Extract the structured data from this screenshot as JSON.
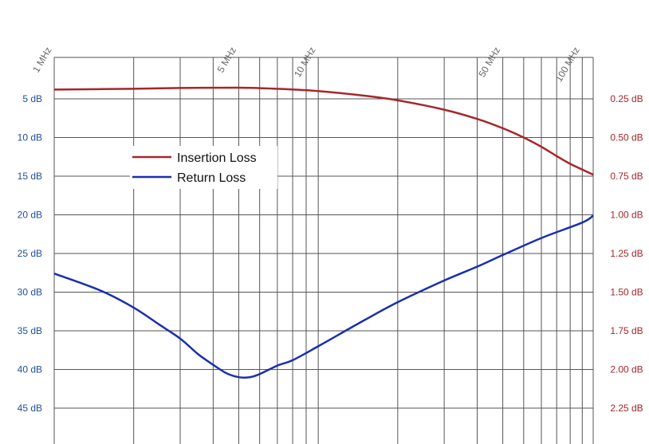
{
  "chart_data": {
    "type": "line",
    "x_scale": "log",
    "x_range_mhz": [
      1,
      110
    ],
    "left_axis": {
      "color": "#1f4f9a",
      "ticks": [
        {
          "value": 5,
          "label": "5 dB"
        },
        {
          "value": 10,
          "label": "10 dB"
        },
        {
          "value": 15,
          "label": "15 dB"
        },
        {
          "value": 20,
          "label": "20 dB"
        },
        {
          "value": 25,
          "label": "25 dB"
        },
        {
          "value": 30,
          "label": "30 dB"
        },
        {
          "value": 35,
          "label": "35 dB"
        },
        {
          "value": 40,
          "label": "40 dB"
        },
        {
          "value": 45,
          "label": "45 dB"
        }
      ],
      "range": [
        0.3,
        49
      ]
    },
    "right_axis": {
      "color": "#a8262a",
      "ticks": [
        {
          "value": 0.25,
          "label": "0.25 dB"
        },
        {
          "value": 0.5,
          "label": "0.50 dB"
        },
        {
          "value": 0.75,
          "label": "0.75 dB"
        },
        {
          "value": 1.0,
          "label": "1.00 dB"
        },
        {
          "value": 1.25,
          "label": "1.25 dB"
        },
        {
          "value": 1.5,
          "label": "1.50 dB"
        },
        {
          "value": 1.75,
          "label": "1.75 dB"
        },
        {
          "value": 2.0,
          "label": "2.00 dB"
        },
        {
          "value": 2.25,
          "label": "2.25 dB"
        }
      ]
    },
    "x_tick_labels": [
      {
        "value": 1,
        "label": "1 MHz"
      },
      {
        "value": 5,
        "label": "5 MHz"
      },
      {
        "value": 10,
        "label": "10 MHz"
      },
      {
        "value": 50,
        "label": "50 MHz"
      },
      {
        "value": 100,
        "label": "100 MHz"
      }
    ],
    "x_gridlines": [
      1,
      2,
      3,
      4,
      5,
      6,
      7,
      8,
      9,
      10,
      20,
      30,
      40,
      50,
      60,
      70,
      80,
      90,
      100
    ],
    "grid": true,
    "legend_position": "upper-left",
    "series": [
      {
        "name": "Insertion Loss",
        "axis": "right",
        "color": "#a8262a",
        "points": [
          [
            1,
            0.19
          ],
          [
            2,
            0.185
          ],
          [
            3,
            0.18
          ],
          [
            5,
            0.178
          ],
          [
            7,
            0.185
          ],
          [
            10,
            0.2
          ],
          [
            15,
            0.23
          ],
          [
            20,
            0.26
          ],
          [
            30,
            0.32
          ],
          [
            40,
            0.38
          ],
          [
            50,
            0.44
          ],
          [
            60,
            0.5
          ],
          [
            70,
            0.56
          ],
          [
            80,
            0.62
          ],
          [
            90,
            0.67
          ],
          [
            110,
            0.74
          ]
        ]
      },
      {
        "name": "Return Loss",
        "axis": "left",
        "color": "#1a2fb0",
        "points": [
          [
            1,
            27.6
          ],
          [
            1.5,
            29.8
          ],
          [
            2,
            32.0
          ],
          [
            2.5,
            34.2
          ],
          [
            3,
            36.0
          ],
          [
            3.5,
            38.0
          ],
          [
            4,
            39.4
          ],
          [
            4.5,
            40.5
          ],
          [
            5,
            41.0
          ],
          [
            5.5,
            41.0
          ],
          [
            6,
            40.6
          ],
          [
            7,
            39.5
          ],
          [
            8,
            38.8
          ],
          [
            10,
            37.0
          ],
          [
            15,
            33.6
          ],
          [
            20,
            31.3
          ],
          [
            30,
            28.5
          ],
          [
            40,
            26.7
          ],
          [
            50,
            25.2
          ],
          [
            70,
            23.0
          ],
          [
            100,
            21.0
          ],
          [
            110,
            20.1
          ]
        ]
      }
    ]
  }
}
